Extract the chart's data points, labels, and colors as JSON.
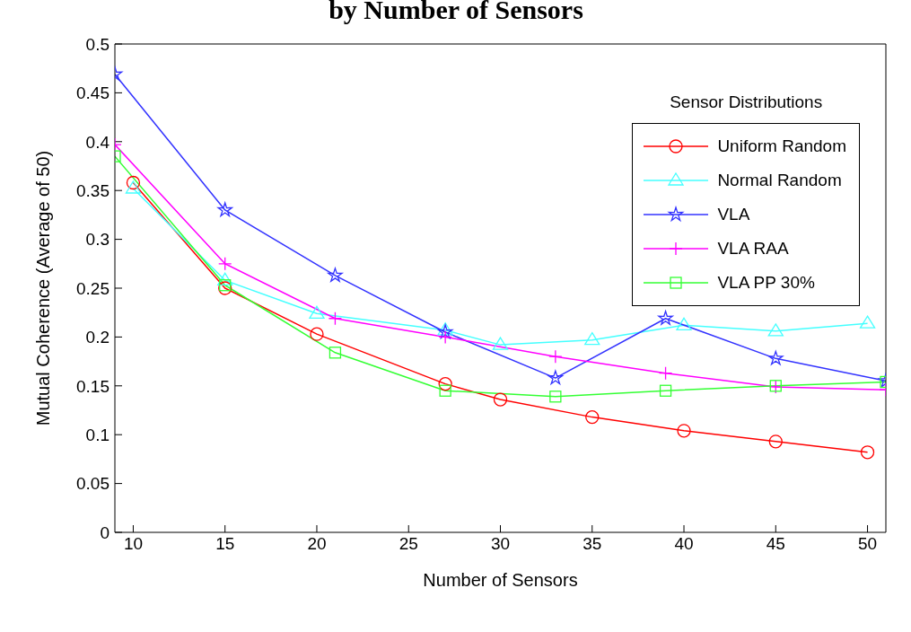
{
  "chart_data": {
    "type": "line",
    "title": "by Number of Sensors",
    "xlabel": "Number of Sensors",
    "ylabel": "Mutual Coherence (Average of 50)",
    "legend_title": "Sensor Distributions",
    "legend": "top right",
    "grid": false,
    "xlim": [
      9,
      51
    ],
    "xticks": [
      10,
      15,
      20,
      25,
      30,
      35,
      40,
      45,
      50
    ],
    "ylim": [
      0,
      0.5
    ],
    "yticks": [
      0,
      0.05,
      0.1,
      0.15,
      0.2,
      0.25,
      0.3,
      0.35,
      0.4,
      0.45,
      0.5
    ],
    "series": [
      {
        "name": "Uniform Random",
        "color": "#ff0000",
        "marker": "circle",
        "x": [
          10,
          15,
          20,
          27,
          30,
          35,
          40,
          45,
          50
        ],
        "values": [
          0.358,
          0.25,
          0.203,
          0.152,
          0.136,
          0.118,
          0.104,
          0.093,
          0.082
        ]
      },
      {
        "name": "Normal Random",
        "color": "#44ffff",
        "marker": "triangle",
        "x": [
          10,
          15,
          20,
          27,
          30,
          35,
          40,
          45,
          50
        ],
        "values": [
          0.352,
          0.258,
          0.224,
          0.207,
          0.192,
          0.197,
          0.212,
          0.206,
          0.214
        ]
      },
      {
        "name": "VLA",
        "color": "#3333ff",
        "marker": "star",
        "x": [
          9,
          15,
          21,
          27,
          33,
          39,
          45,
          51
        ],
        "values": [
          0.469,
          0.33,
          0.263,
          0.205,
          0.158,
          0.219,
          0.178,
          0.155
        ]
      },
      {
        "name": "VLA RAA",
        "color": "#ff00ff",
        "marker": "cross",
        "x": [
          9,
          15,
          21,
          27,
          33,
          39,
          45,
          51
        ],
        "values": [
          0.397,
          0.275,
          0.219,
          0.2,
          0.18,
          0.163,
          0.149,
          0.146
        ]
      },
      {
        "name": "VLA PP 30%",
        "color": "#33ff33",
        "marker": "square",
        "x": [
          9,
          15,
          21,
          27,
          33,
          39,
          45,
          51
        ],
        "values": [
          0.385,
          0.253,
          0.184,
          0.145,
          0.139,
          0.145,
          0.15,
          0.154
        ]
      }
    ]
  }
}
